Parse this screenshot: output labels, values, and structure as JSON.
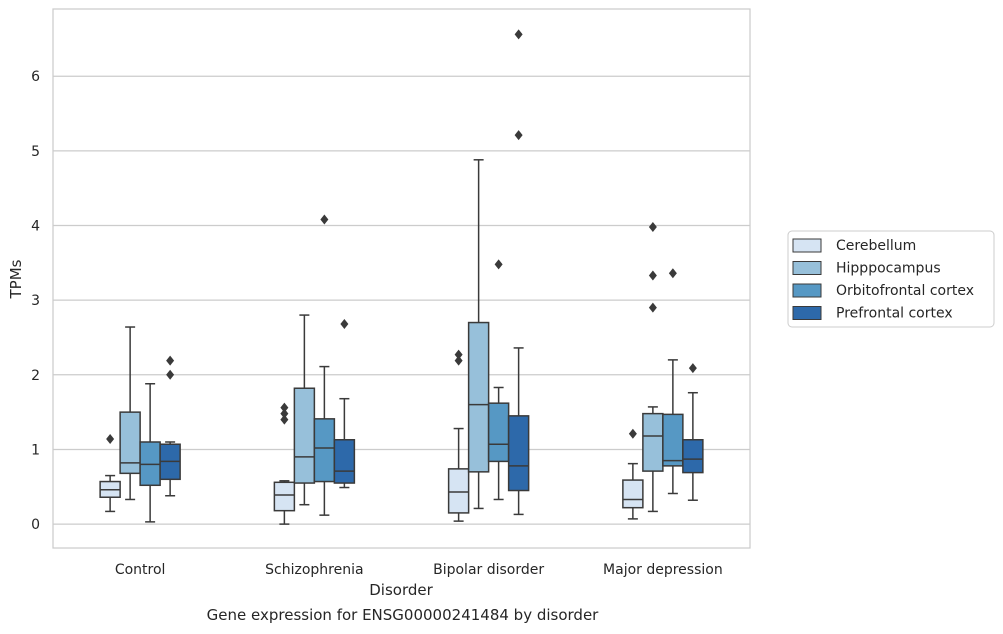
{
  "caption": "Gene expression for ENSG00000241484 by disorder",
  "chart_data": {
    "type": "box",
    "title": "",
    "xlabel": "Disorder",
    "ylabel": "TPMs",
    "ylim": [
      -0.32,
      6.9
    ],
    "yticks": [
      0,
      1,
      2,
      3,
      4,
      5,
      6
    ],
    "grid": "horizontal",
    "legend_position": "right",
    "categories": [
      "Control",
      "Schizophrenia",
      "Bipolar disorder",
      "Major depression"
    ],
    "series": [
      {
        "name": "Cerebellum",
        "color": "#d6e4f3",
        "boxes": [
          {
            "whisker_low": 0.17,
            "q1": 0.36,
            "median": 0.46,
            "q3": 0.57,
            "whisker_high": 0.65,
            "outliers": [
              1.14
            ]
          },
          {
            "whisker_low": 0.0,
            "q1": 0.18,
            "median": 0.39,
            "q3": 0.56,
            "whisker_high": 0.58,
            "outliers": [
              1.4,
              1.48,
              1.56
            ]
          },
          {
            "whisker_low": 0.04,
            "q1": 0.15,
            "median": 0.43,
            "q3": 0.74,
            "whisker_high": 1.28,
            "outliers": [
              2.19,
              2.27
            ]
          },
          {
            "whisker_low": 0.07,
            "q1": 0.22,
            "median": 0.33,
            "q3": 0.59,
            "whisker_high": 0.81,
            "outliers": [
              1.21
            ]
          }
        ]
      },
      {
        "name": "Hipppocampus",
        "color": "#97c0da",
        "boxes": [
          {
            "whisker_low": 0.33,
            "q1": 0.68,
            "median": 0.82,
            "q3": 1.5,
            "whisker_high": 2.64,
            "outliers": []
          },
          {
            "whisker_low": 0.26,
            "q1": 0.55,
            "median": 0.9,
            "q3": 1.82,
            "whisker_high": 2.8,
            "outliers": []
          },
          {
            "whisker_low": 0.21,
            "q1": 0.7,
            "median": 1.6,
            "q3": 2.7,
            "whisker_high": 4.88,
            "outliers": []
          },
          {
            "whisker_low": 0.17,
            "q1": 0.71,
            "median": 1.18,
            "q3": 1.48,
            "whisker_high": 1.57,
            "outliers": [
              2.9,
              3.33,
              3.98
            ]
          }
        ]
      },
      {
        "name": "Orbitofrontal cortex",
        "color": "#5698c4",
        "boxes": [
          {
            "whisker_low": 0.03,
            "q1": 0.52,
            "median": 0.8,
            "q3": 1.1,
            "whisker_high": 1.88,
            "outliers": []
          },
          {
            "whisker_low": 0.12,
            "q1": 0.57,
            "median": 1.02,
            "q3": 1.41,
            "whisker_high": 2.11,
            "outliers": [
              4.08
            ]
          },
          {
            "whisker_low": 0.33,
            "q1": 0.84,
            "median": 1.07,
            "q3": 1.62,
            "whisker_high": 1.83,
            "outliers": [
              3.48
            ]
          },
          {
            "whisker_low": 0.41,
            "q1": 0.78,
            "median": 0.85,
            "q3": 1.47,
            "whisker_high": 2.2,
            "outliers": [
              3.36
            ]
          }
        ]
      },
      {
        "name": "Prefrontal cortex",
        "color": "#2d69aa",
        "boxes": [
          {
            "whisker_low": 0.38,
            "q1": 0.6,
            "median": 0.84,
            "q3": 1.07,
            "whisker_high": 1.1,
            "outliers": [
              2.0,
              2.19
            ]
          },
          {
            "whisker_low": 0.49,
            "q1": 0.55,
            "median": 0.71,
            "q3": 1.13,
            "whisker_high": 1.68,
            "outliers": [
              2.68
            ]
          },
          {
            "whisker_low": 0.13,
            "q1": 0.45,
            "median": 0.78,
            "q3": 1.45,
            "whisker_high": 2.36,
            "outliers": [
              5.21,
              6.56
            ]
          },
          {
            "whisker_low": 0.32,
            "q1": 0.69,
            "median": 0.87,
            "q3": 1.13,
            "whisker_high": 1.76,
            "outliers": [
              2.09
            ]
          }
        ]
      }
    ]
  }
}
